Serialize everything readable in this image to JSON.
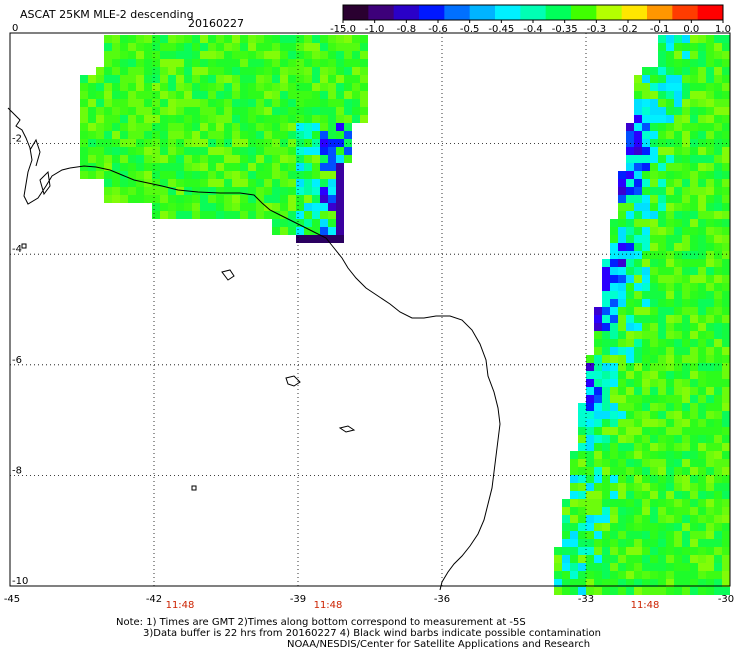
{
  "header": {
    "title": "ASCAT 25KM MLE-2 descending",
    "date": "20160227"
  },
  "colorbar": {
    "labels": [
      "-15.0",
      "-1.0",
      "-0.8",
      "-0.6",
      "-0.5",
      "-0.45",
      "-0.4",
      "-0.35",
      "-0.3",
      "-0.2",
      "-0.1",
      "0.0",
      "1.0"
    ],
    "colors": [
      "#2a0030",
      "#3d007a",
      "#2a00c8",
      "#0018ff",
      "#0070ff",
      "#00b4ff",
      "#00f0ff",
      "#00ffb4",
      "#00ff5a",
      "#40ff00",
      "#b4ff00",
      "#ffe600",
      "#ff9600",
      "#ff3c00",
      "#ff0000"
    ]
  },
  "axes": {
    "x_ticks": [
      "-45",
      "-42",
      "-39",
      "-36",
      "-33",
      "-30"
    ],
    "y_ticks": [
      "0",
      "-2",
      "-4",
      "-6",
      "-8",
      "-10"
    ],
    "x_range": [
      -45,
      -30
    ],
    "y_range": [
      0,
      -10
    ],
    "grid": "dotted"
  },
  "time_labels": [
    "11:48",
    "11:48",
    "11:48"
  ],
  "time_color": "#cc2200",
  "notes": [
    "Note: 1) Times are GMT 2)Times along bottom correspond to measurement at -5S",
    "3)Data buffer is 22 hrs from 20160227 4) Black wind barbs indicate possible contamination",
    "NOAA/NESDIS/Center for Satellite Applications and Research"
  ]
}
